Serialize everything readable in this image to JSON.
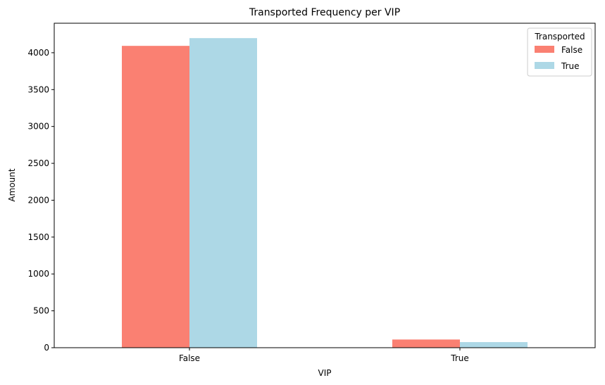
{
  "chart_data": {
    "type": "bar",
    "title": "Transported Frequency per VIP",
    "xlabel": "VIP",
    "ylabel": "Amount",
    "categories": [
      "False",
      "True"
    ],
    "ylim": [
      0,
      4400
    ],
    "yticks": [
      0,
      500,
      1000,
      1500,
      2000,
      2500,
      3000,
      3500,
      4000
    ],
    "grid": false,
    "legend": {
      "title": "Transported",
      "placement": "top-right"
    },
    "series": [
      {
        "name": "False",
        "color": "#fa8072",
        "values": [
          4093,
          111
        ]
      },
      {
        "name": "True",
        "color": "#add8e6",
        "values": [
          4198,
          76
        ]
      }
    ]
  }
}
